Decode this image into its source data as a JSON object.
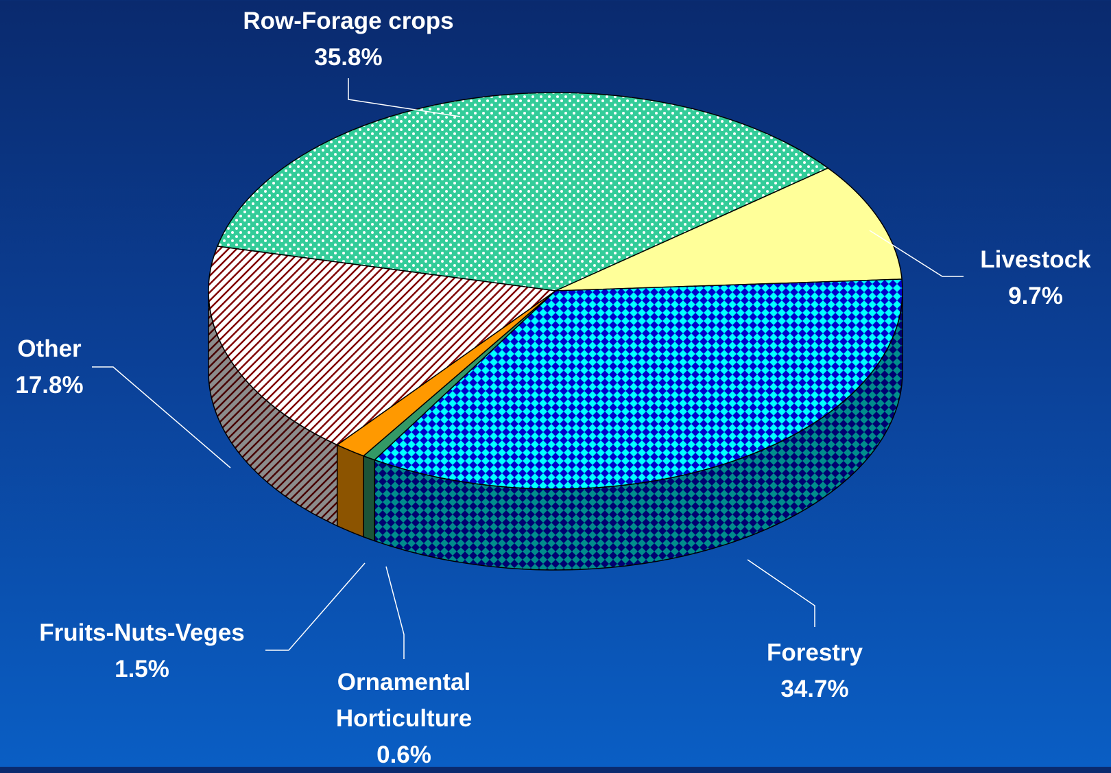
{
  "chart_data": {
    "type": "pie3d",
    "categories": [
      "Row-Forage crops",
      "Livestock",
      "Forestry",
      "Ornamental Horticulture",
      "Fruits-Nuts-Veges",
      "Other"
    ],
    "values": [
      35.8,
      9.7,
      34.7,
      0.6,
      1.5,
      17.8
    ],
    "value_labels": [
      "35.8%",
      "9.7%",
      "34.7%",
      "0.6%",
      "1.5%",
      "17.8%"
    ],
    "colors": [
      "#33cc99",
      "#ffff99",
      "#00ffff",
      "#339966",
      "#ff9900",
      "#ffffff"
    ]
  }
}
